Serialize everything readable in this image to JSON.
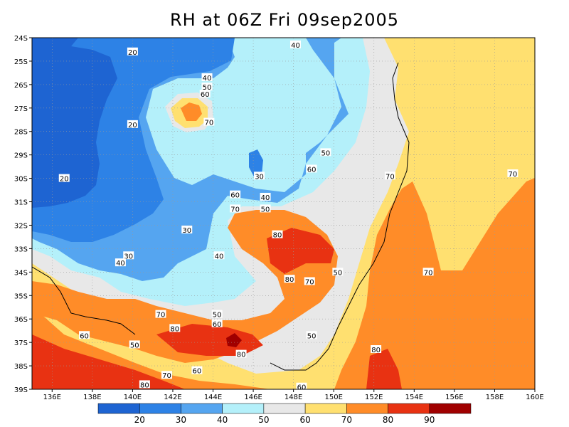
{
  "title": "RH at 06Z Fri 09sep2005",
  "map": {
    "lat_labels": [
      "24S",
      "25S",
      "26S",
      "27S",
      "28S",
      "29S",
      "30S",
      "31S",
      "32S",
      "33S",
      "34S",
      "35S",
      "36S",
      "37S",
      "38S",
      "39S"
    ],
    "lon_labels": [
      "136E",
      "138E",
      "140E",
      "142E",
      "144E",
      "146E",
      "148E",
      "150E",
      "152E",
      "154E",
      "156E",
      "158E",
      "160E"
    ],
    "lat_range": [
      -39,
      -24
    ],
    "lon_range": [
      135,
      160
    ],
    "grid": true
  },
  "contour_labels": [
    {
      "text": "20",
      "lon": 140.0,
      "lat": -24.6
    },
    {
      "text": "20",
      "lon": 140.0,
      "lat": -27.7
    },
    {
      "text": "20",
      "lon": 136.6,
      "lat": -30.0
    },
    {
      "text": "40",
      "lon": 148.1,
      "lat": -24.3
    },
    {
      "text": "40",
      "lon": 143.7,
      "lat": -25.7
    },
    {
      "text": "50",
      "lon": 143.7,
      "lat": -26.1
    },
    {
      "text": "60",
      "lon": 143.6,
      "lat": -26.4
    },
    {
      "text": "70",
      "lon": 143.8,
      "lat": -27.6
    },
    {
      "text": "50",
      "lon": 149.6,
      "lat": -28.9
    },
    {
      "text": "30",
      "lon": 146.3,
      "lat": -29.9
    },
    {
      "text": "60",
      "lon": 148.9,
      "lat": -29.6
    },
    {
      "text": "70",
      "lon": 152.8,
      "lat": -29.9
    },
    {
      "text": "70",
      "lon": 158.9,
      "lat": -29.8
    },
    {
      "text": "60",
      "lon": 145.1,
      "lat": -30.7
    },
    {
      "text": "40",
      "lon": 146.6,
      "lat": -30.8
    },
    {
      "text": "50",
      "lon": 146.6,
      "lat": -31.3
    },
    {
      "text": "70",
      "lon": 145.1,
      "lat": -31.3
    },
    {
      "text": "30",
      "lon": 142.7,
      "lat": -32.2
    },
    {
      "text": "80",
      "lon": 147.2,
      "lat": -32.4
    },
    {
      "text": "40",
      "lon": 144.3,
      "lat": -33.3
    },
    {
      "text": "30",
      "lon": 139.8,
      "lat": -33.3
    },
    {
      "text": "40",
      "lon": 139.4,
      "lat": -33.6
    },
    {
      "text": "50",
      "lon": 150.2,
      "lat": -34.0
    },
    {
      "text": "70",
      "lon": 154.7,
      "lat": -34.0
    },
    {
      "text": "80",
      "lon": 147.8,
      "lat": -34.3
    },
    {
      "text": "70",
      "lon": 148.8,
      "lat": -34.4
    },
    {
      "text": "70",
      "lon": 141.4,
      "lat": -35.8
    },
    {
      "text": "50",
      "lon": 144.2,
      "lat": -35.8
    },
    {
      "text": "60",
      "lon": 144.2,
      "lat": -36.2
    },
    {
      "text": "80",
      "lon": 142.1,
      "lat": -36.4
    },
    {
      "text": "60",
      "lon": 137.6,
      "lat": -36.7
    },
    {
      "text": "50",
      "lon": 148.9,
      "lat": -36.7
    },
    {
      "text": "50",
      "lon": 140.1,
      "lat": -37.1
    },
    {
      "text": "80",
      "lon": 145.4,
      "lat": -37.5
    },
    {
      "text": "80",
      "lon": 152.1,
      "lat": -37.3
    },
    {
      "text": "60",
      "lon": 143.2,
      "lat": -38.2
    },
    {
      "text": "70",
      "lon": 141.7,
      "lat": -38.4
    },
    {
      "text": "80",
      "lon": 140.6,
      "lat": -38.8
    },
    {
      "text": "60",
      "lon": 148.4,
      "lat": -38.9
    }
  ],
  "colorbar": {
    "labels": [
      "20",
      "30",
      "40",
      "50",
      "60",
      "70",
      "80",
      "90"
    ],
    "colors": [
      "#1e64d2",
      "#2d82e6",
      "#55a5f0",
      "#b4f0fa",
      "#e8e8e8",
      "#ffe070",
      "#ff8c28",
      "#e83212",
      "#a00000"
    ]
  }
}
